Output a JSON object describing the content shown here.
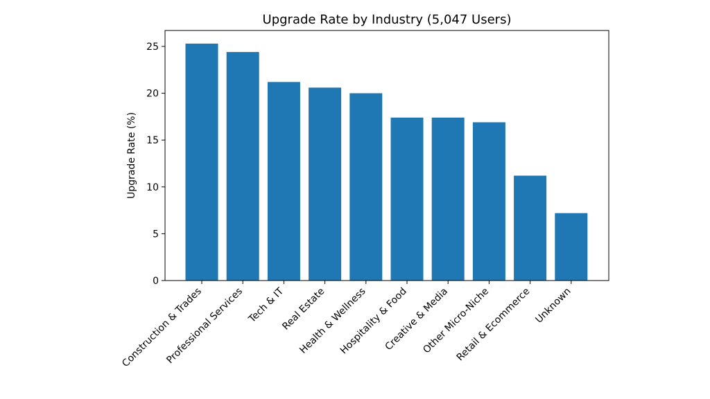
{
  "chart_data": {
    "type": "bar",
    "title": "Upgrade Rate by Industry (5,047 Users)",
    "xlabel": "",
    "ylabel": "Upgrade Rate (%)",
    "ylim": [
      0,
      26.7
    ],
    "yticks": [
      0,
      5,
      10,
      15,
      20,
      25
    ],
    "categories": [
      "Construction & Trades",
      "Professional Services",
      "Tech & IT",
      "Real Estate",
      "Health & Wellness",
      "Hospitality & Food",
      "Creative & Media",
      "Other Micro-Niche",
      "Retail & Ecommerce",
      "Unknown"
    ],
    "values": [
      25.3,
      24.4,
      21.2,
      20.6,
      20.0,
      17.4,
      17.4,
      16.9,
      11.2,
      7.2
    ],
    "bar_color": "#1f77b4",
    "grid": false,
    "legend": "none"
  }
}
